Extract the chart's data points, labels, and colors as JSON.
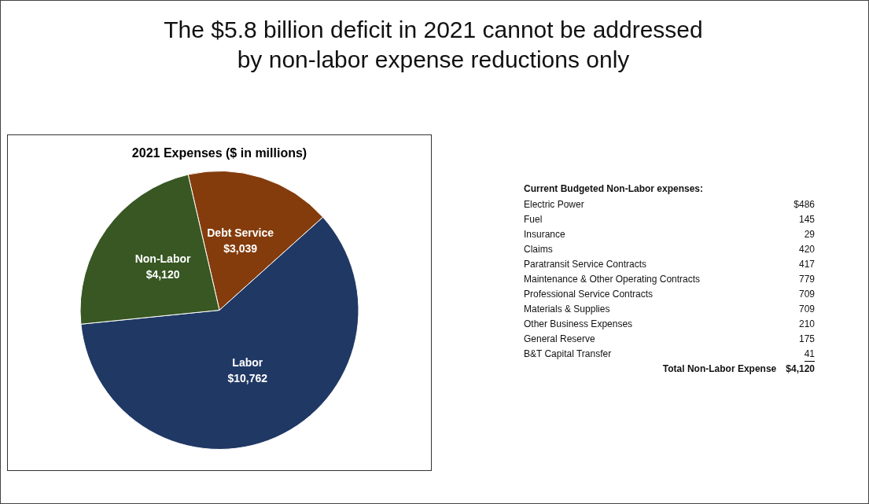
{
  "chart_data": [
    {
      "type": "pie",
      "title": "The $5.8 billion deficit in 2021 cannot be addressed by non-labor expense reductions only",
      "subtitle": "2021 Expenses ($ in millions)",
      "categories": [
        "Debt Service",
        "Labor",
        "Non-Labor"
      ],
      "values": [
        3039,
        10762,
        4120
      ],
      "colors": [
        "#843c0c",
        "#203864",
        "#385723"
      ],
      "value_labels": [
        "$3,039",
        "$10,762",
        "$4,120"
      ],
      "legend": false
    },
    {
      "type": "other",
      "title": "Current Budgeted Non-Labor expenses:",
      "annotations": [
        "Electric Power",
        "$486",
        "Fuel",
        "145",
        "Insurance",
        "29",
        "Claims",
        "420",
        "Paratransit Service Contracts",
        "417",
        "Maintenance & Other Operating Contracts",
        "779",
        "Professional Service Contracts",
        "709",
        "Materials & Supplies",
        "709",
        "Other Business Expenses",
        "210",
        "General Reserve",
        "175",
        "B&T Capital Transfer",
        "41",
        "Total Non-Labor Expense",
        "$4,120"
      ]
    }
  ]
}
